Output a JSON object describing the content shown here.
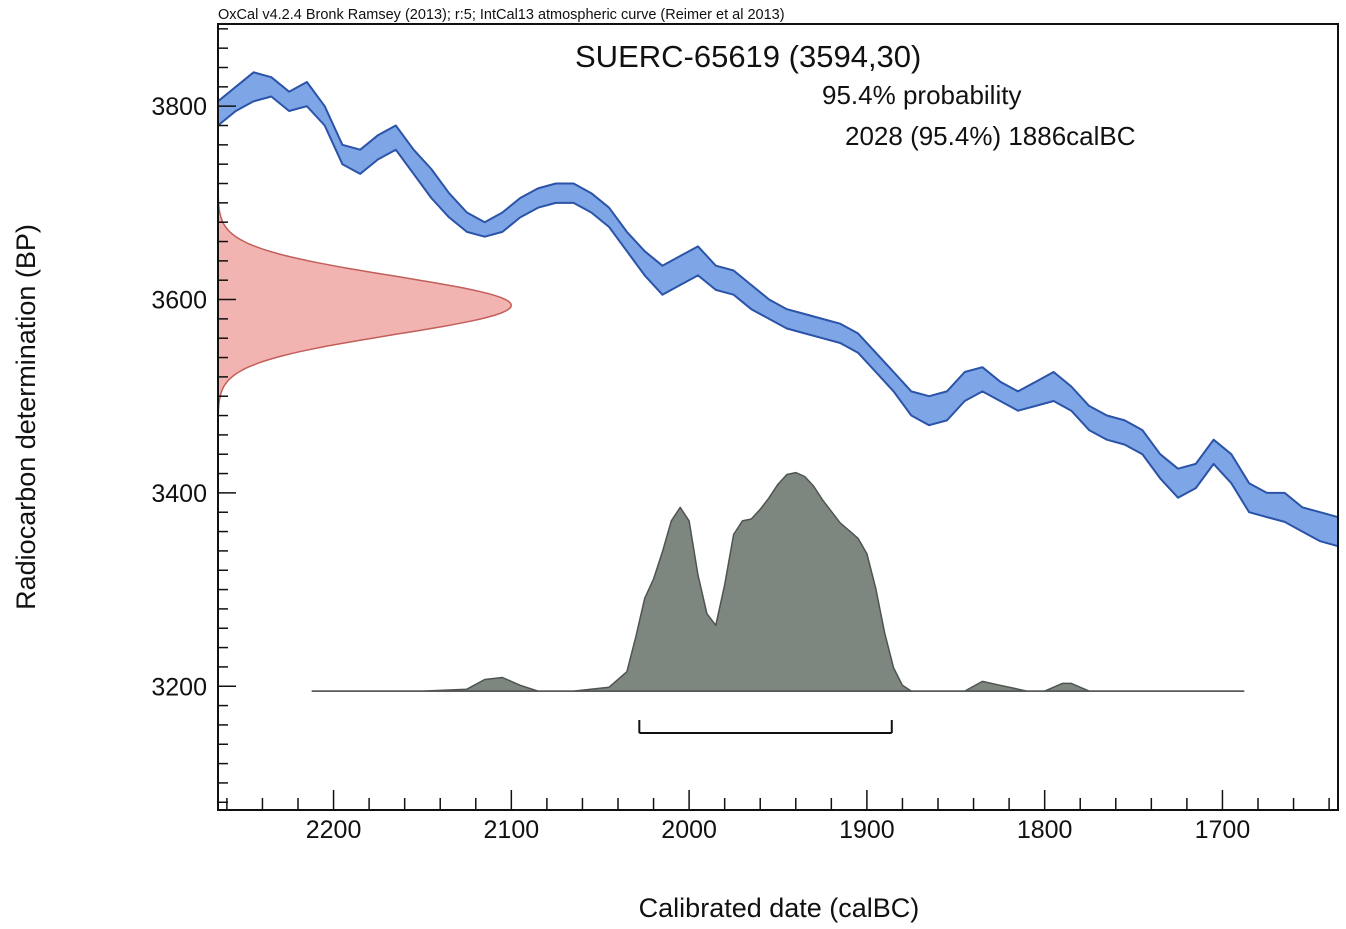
{
  "chart_data": {
    "type": "area",
    "software_header": "OxCal v4.2.4 Bronk Ramsey (2013); r:5; IntCal13 atmospheric curve (Reimer et al 2013)",
    "sample_title": "SUERC-65619 (3594,30)",
    "probability_heading": "95.4% probability",
    "probability_range": "2028 (95.4%) 1886calBC",
    "xlabel": "Calibrated date (calBC)",
    "ylabel": "Radiocarbon determination (BP)",
    "xlim": [
      2265,
      1635
    ],
    "ylim": [
      3072,
      3885
    ],
    "x_ticks": [
      2200,
      2100,
      2000,
      1900,
      1800,
      1700
    ],
    "y_ticks": [
      3800,
      3600,
      3400,
      3200
    ],
    "colors": {
      "calibration_fill": "#7ea6e6",
      "calibration_edge": "#2b53a8",
      "radiocarbon_fill": "#f2b4b0",
      "radiocarbon_edge": "#c45e5a",
      "posterior_fill": "#7e8680",
      "posterior_edge": "#4e5450",
      "range_bar": "#111111"
    },
    "calibration_curve": {
      "x": [
        2265,
        2255,
        2245,
        2235,
        2225,
        2215,
        2205,
        2195,
        2185,
        2175,
        2165,
        2155,
        2145,
        2135,
        2125,
        2115,
        2105,
        2095,
        2085,
        2075,
        2065,
        2055,
        2045,
        2035,
        2025,
        2015,
        2005,
        1995,
        1985,
        1975,
        1965,
        1955,
        1945,
        1935,
        1925,
        1915,
        1905,
        1895,
        1885,
        1875,
        1865,
        1855,
        1845,
        1835,
        1825,
        1815,
        1805,
        1795,
        1785,
        1775,
        1765,
        1755,
        1745,
        1735,
        1725,
        1715,
        1705,
        1695,
        1685,
        1675,
        1665,
        1655,
        1645,
        1635
      ],
      "upper": [
        3805,
        3820,
        3835,
        3830,
        3815,
        3825,
        3800,
        3760,
        3755,
        3770,
        3780,
        3755,
        3735,
        3710,
        3690,
        3680,
        3690,
        3705,
        3715,
        3720,
        3720,
        3710,
        3695,
        3670,
        3650,
        3635,
        3645,
        3655,
        3635,
        3630,
        3615,
        3600,
        3590,
        3585,
        3580,
        3575,
        3565,
        3545,
        3525,
        3505,
        3500,
        3505,
        3525,
        3530,
        3515,
        3505,
        3515,
        3525,
        3510,
        3490,
        3480,
        3475,
        3465,
        3440,
        3425,
        3430,
        3455,
        3440,
        3410,
        3400,
        3400,
        3385,
        3380,
        3375
      ],
      "lower": [
        3780,
        3795,
        3805,
        3810,
        3795,
        3800,
        3780,
        3740,
        3730,
        3745,
        3755,
        3730,
        3705,
        3685,
        3670,
        3665,
        3670,
        3685,
        3695,
        3700,
        3700,
        3690,
        3675,
        3650,
        3625,
        3605,
        3615,
        3625,
        3610,
        3605,
        3590,
        3580,
        3570,
        3565,
        3560,
        3555,
        3545,
        3525,
        3505,
        3480,
        3470,
        3475,
        3495,
        3505,
        3495,
        3485,
        3490,
        3495,
        3485,
        3465,
        3455,
        3450,
        3440,
        3415,
        3395,
        3405,
        3430,
        3410,
        3380,
        3375,
        3370,
        3360,
        3350,
        3345
      ]
    },
    "radiocarbon_distribution": {
      "mean_bp": 3594,
      "sd_bp": 30,
      "max_extent_years": 165
    },
    "posterior_distribution": {
      "baseline_bp": 3195,
      "x_range": [
        2212,
        1688
      ],
      "x": [
        2212,
        2150,
        2125,
        2115,
        2105,
        2095,
        2085,
        2065,
        2045,
        2035,
        2030,
        2025,
        2020,
        2015,
        2010,
        2005,
        2000,
        1995,
        1990,
        1985,
        1980,
        1975,
        1970,
        1965,
        1960,
        1955,
        1950,
        1945,
        1940,
        1935,
        1930,
        1925,
        1920,
        1915,
        1910,
        1905,
        1900,
        1895,
        1890,
        1885,
        1880,
        1875,
        1865,
        1845,
        1835,
        1825,
        1810,
        1800,
        1790,
        1785,
        1775,
        1760,
        1688
      ],
      "density": [
        0,
        0,
        0.01,
        0.06,
        0.07,
        0.03,
        0,
        0,
        0.02,
        0.1,
        0.28,
        0.48,
        0.58,
        0.72,
        0.88,
        0.95,
        0.88,
        0.6,
        0.4,
        0.34,
        0.55,
        0.81,
        0.88,
        0.89,
        0.94,
        1.0,
        1.07,
        1.12,
        1.13,
        1.11,
        1.06,
        0.99,
        0.93,
        0.87,
        0.83,
        0.79,
        0.71,
        0.53,
        0.3,
        0.12,
        0.03,
        0,
        0,
        0,
        0.05,
        0.03,
        0,
        0,
        0.04,
        0.04,
        0,
        0,
        0
      ]
    },
    "range_bars": [
      {
        "from": 2028,
        "to": 1886
      }
    ]
  }
}
